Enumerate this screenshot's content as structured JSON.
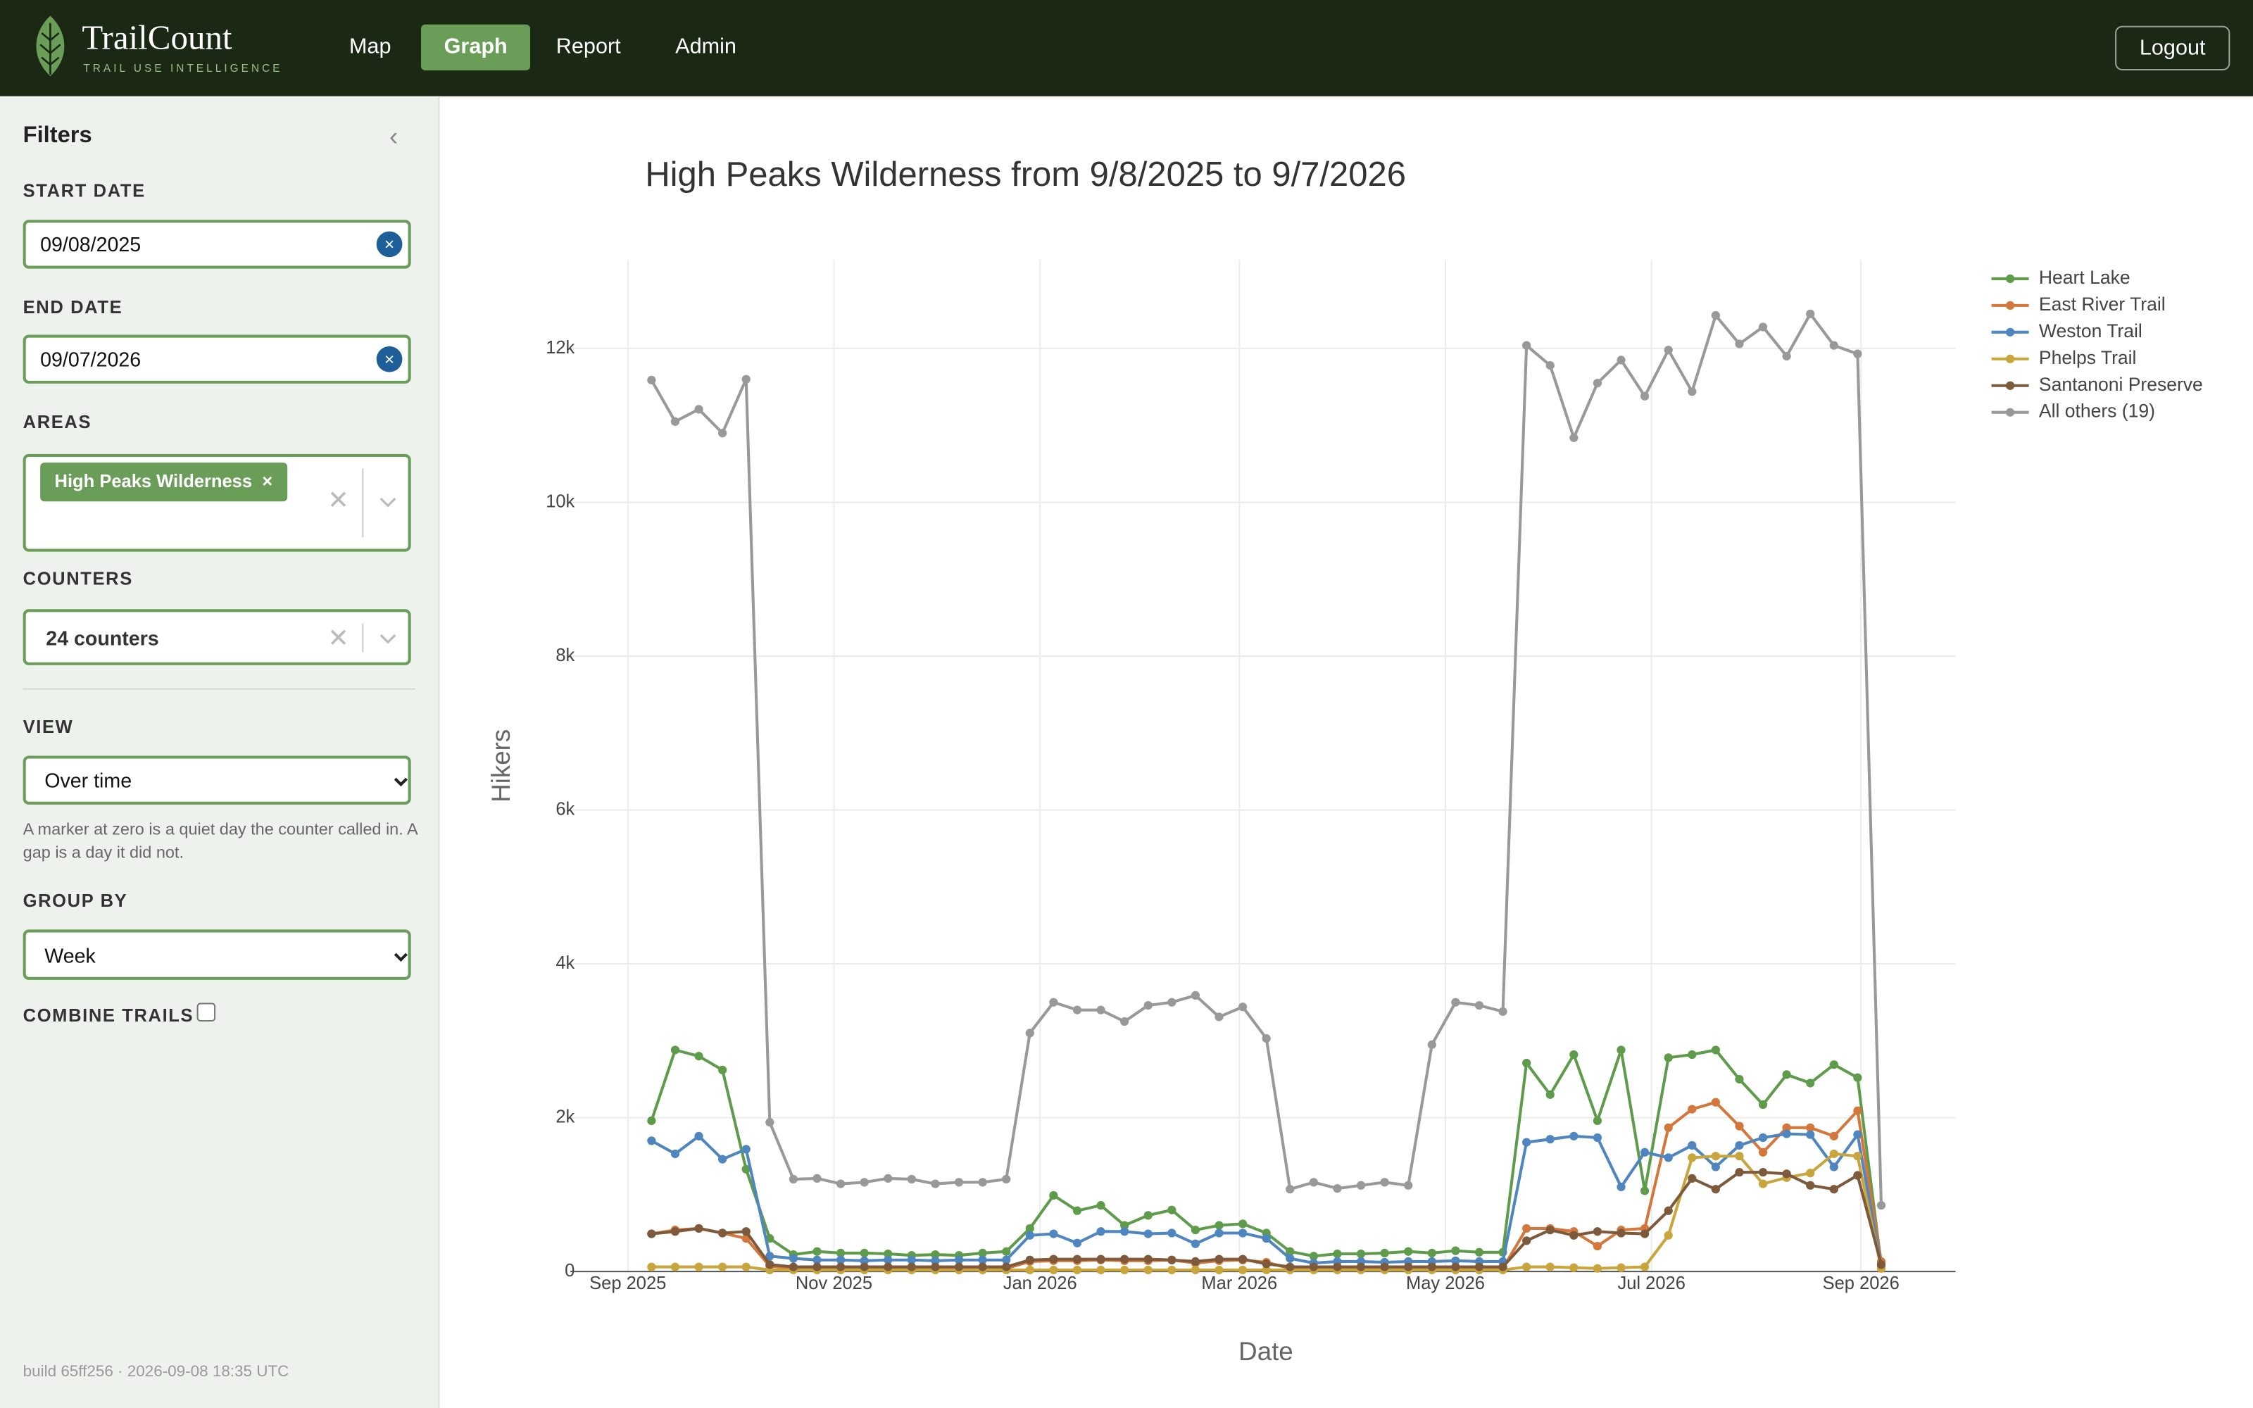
{
  "header": {
    "brand": "TrailCount",
    "tagline": "TRAIL USE INTELLIGENCE",
    "nav": [
      "Map",
      "Graph",
      "Report",
      "Admin"
    ],
    "active_nav": "Graph",
    "logout": "Logout"
  },
  "sidebar": {
    "title": "Filters",
    "start_date": {
      "label": "START DATE",
      "value": "09/08/2025"
    },
    "end_date": {
      "label": "END DATE",
      "value": "09/07/2026"
    },
    "areas": {
      "label": "AREAS",
      "tags": [
        "High Peaks Wilderness"
      ]
    },
    "counters": {
      "label": "COUNTERS",
      "value": "24 counters"
    },
    "view": {
      "label": "VIEW",
      "value": "Over time",
      "help": "A marker at zero is a quiet day the counter called in. A gap is a day it did not."
    },
    "group_by": {
      "label": "GROUP BY",
      "value": "Week"
    },
    "combine_trails": {
      "label": "COMBINE TRAILS",
      "checked": false
    },
    "build": "build 65ff256 · 2026-09-08 18:35 UTC"
  },
  "chart_data": {
    "type": "line",
    "title": "High Peaks Wilderness from 9/8/2025 to 9/7/2026",
    "x_label": "Date",
    "y_label": "Hikers",
    "x": [
      "2025-09-08",
      "2025-09-15",
      "2025-09-22",
      "2025-09-29",
      "2025-10-06",
      "2025-10-13",
      "2025-10-20",
      "2025-10-27",
      "2025-11-03",
      "2025-11-10",
      "2025-11-17",
      "2025-11-24",
      "2025-12-01",
      "2025-12-08",
      "2025-12-15",
      "2025-12-22",
      "2025-12-29",
      "2026-01-05",
      "2026-01-12",
      "2026-01-19",
      "2026-01-26",
      "2026-02-02",
      "2026-02-09",
      "2026-02-16",
      "2026-02-23",
      "2026-03-02",
      "2026-03-09",
      "2026-03-16",
      "2026-03-23",
      "2026-03-30",
      "2026-04-06",
      "2026-04-13",
      "2026-04-20",
      "2026-04-27",
      "2026-05-04",
      "2026-05-11",
      "2026-05-18",
      "2026-05-25",
      "2026-06-01",
      "2026-06-08",
      "2026-06-15",
      "2026-06-22",
      "2026-06-29",
      "2026-07-06",
      "2026-07-13",
      "2026-07-20",
      "2026-07-27",
      "2026-08-03",
      "2026-08-10",
      "2026-08-17",
      "2026-08-24",
      "2026-08-31",
      "2026-09-07"
    ],
    "series": [
      {
        "name": "Heart Lake",
        "color": "#5e9c4c",
        "values": [
          1960,
          2880,
          2800,
          2620,
          1330,
          430,
          220,
          260,
          240,
          240,
          230,
          210,
          220,
          210,
          240,
          260,
          560,
          990,
          790,
          860,
          600,
          730,
          800,
          540,
          600,
          620,
          500,
          260,
          200,
          230,
          230,
          240,
          260,
          240,
          270,
          250,
          250,
          2710,
          2300,
          2820,
          1960,
          2880,
          1050,
          2780,
          2820,
          2880,
          2500,
          2170,
          2560,
          2450,
          2690,
          2520,
          90
        ]
      },
      {
        "name": "East River Trail",
        "color": "#d4773c",
        "values": [
          490,
          540,
          560,
          500,
          430,
          70,
          40,
          40,
          40,
          40,
          40,
          40,
          40,
          40,
          40,
          40,
          130,
          140,
          140,
          150,
          140,
          140,
          150,
          110,
          140,
          150,
          120,
          40,
          40,
          40,
          40,
          40,
          40,
          40,
          40,
          40,
          40,
          560,
          560,
          520,
          330,
          540,
          560,
          1870,
          2110,
          2200,
          1890,
          1550,
          1870,
          1870,
          1760,
          2090,
          130
        ]
      },
      {
        "name": "Weston Trail",
        "color": "#4f86c0",
        "values": [
          1700,
          1530,
          1760,
          1460,
          1590,
          200,
          170,
          150,
          150,
          140,
          150,
          150,
          140,
          150,
          150,
          150,
          470,
          490,
          370,
          520,
          520,
          490,
          500,
          360,
          500,
          500,
          430,
          170,
          110,
          130,
          130,
          120,
          130,
          130,
          140,
          130,
          130,
          1680,
          1720,
          1760,
          1740,
          1100,
          1550,
          1480,
          1640,
          1360,
          1640,
          1740,
          1790,
          1780,
          1360,
          1780,
          70
        ]
      },
      {
        "name": "Phelps Trail",
        "color": "#c9a53e",
        "values": [
          60,
          60,
          60,
          60,
          60,
          20,
          20,
          20,
          20,
          20,
          20,
          20,
          20,
          20,
          20,
          20,
          20,
          20,
          20,
          20,
          20,
          20,
          20,
          20,
          20,
          20,
          20,
          20,
          20,
          20,
          20,
          20,
          20,
          20,
          20,
          20,
          20,
          60,
          60,
          50,
          40,
          50,
          60,
          470,
          1480,
          1500,
          1500,
          1140,
          1220,
          1280,
          1530,
          1500,
          40
        ]
      },
      {
        "name": "Santanoni Preserve",
        "color": "#7d5a3c",
        "values": [
          490,
          520,
          560,
          500,
          520,
          90,
          60,
          60,
          60,
          60,
          60,
          60,
          60,
          60,
          60,
          60,
          150,
          160,
          160,
          160,
          160,
          160,
          150,
          130,
          160,
          160,
          100,
          60,
          60,
          60,
          60,
          60,
          60,
          60,
          60,
          60,
          60,
          400,
          540,
          470,
          520,
          500,
          490,
          790,
          1210,
          1070,
          1290,
          1290,
          1270,
          1120,
          1070,
          1250,
          90
        ]
      },
      {
        "name": "All others (19)",
        "color": "#999999",
        "values": [
          11590,
          11050,
          11210,
          10900,
          11600,
          1940,
          1200,
          1210,
          1140,
          1160,
          1210,
          1200,
          1140,
          1160,
          1160,
          1200,
          3100,
          3500,
          3400,
          3400,
          3250,
          3460,
          3500,
          3590,
          3310,
          3440,
          3030,
          1070,
          1160,
          1080,
          1120,
          1160,
          1120,
          2950,
          3500,
          3460,
          3380,
          12040,
          11780,
          10840,
          11550,
          11850,
          11380,
          11980,
          11440,
          12430,
          12060,
          12280,
          11900,
          12450,
          12040,
          11930,
          860
        ]
      }
    ],
    "xlim": [
      "2025-08-15",
      "2026-09-29"
    ],
    "xticks": [
      {
        "value": "2025-09-01",
        "label": "Sep 2025"
      },
      {
        "value": "2025-11-01",
        "label": "Nov 2025"
      },
      {
        "value": "2026-01-01",
        "label": "Jan 2026"
      },
      {
        "value": "2026-03-01",
        "label": "Mar 2026"
      },
      {
        "value": "2026-05-01",
        "label": "May 2026"
      },
      {
        "value": "2026-07-01",
        "label": "Jul 2026"
      },
      {
        "value": "2026-09-01",
        "label": "Sep 2026"
      }
    ],
    "ylim": [
      0,
      13150
    ],
    "yticks": [
      0,
      {
        "value": 2000,
        "label": "2k"
      },
      {
        "value": 4000,
        "label": "4k"
      },
      {
        "value": 6000,
        "label": "6k"
      },
      {
        "value": 8000,
        "label": "8k"
      },
      {
        "value": 10000,
        "label": "10k"
      },
      {
        "value": 12000,
        "label": "12k"
      }
    ],
    "grid": true,
    "legend": "right",
    "markers": true
  }
}
